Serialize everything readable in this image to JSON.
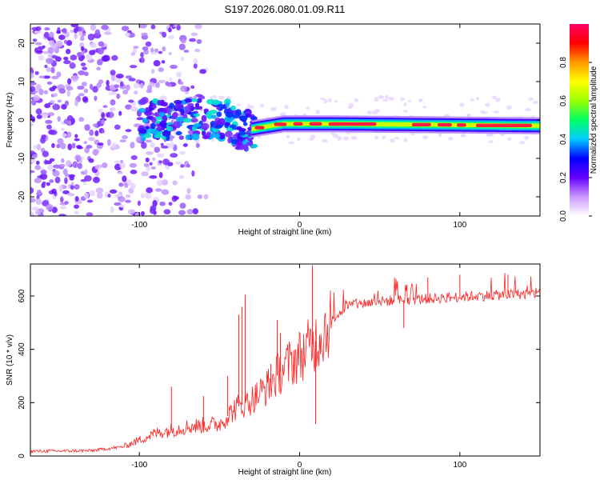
{
  "title": "S197.2026.080.01.09.R11",
  "chart_data": [
    {
      "type": "heatmap",
      "xlabel": "Height of straight line (km)",
      "ylabel": "Frequency (Hz)",
      "xlim": [
        -168,
        150
      ],
      "ylim": [
        -25,
        25
      ],
      "xticks": [
        -100,
        0,
        100
      ],
      "yticks": [
        -20,
        -10,
        0,
        10,
        20
      ],
      "colorbar": {
        "label": "Normalized spectral amplitude",
        "range": [
          0,
          1
        ],
        "ticks": [
          0.0,
          0.2,
          0.4,
          0.6,
          0.8
        ],
        "colors": [
          "#ffffff",
          "#cc99ff",
          "#6600ff",
          "#0000ff",
          "#00ccff",
          "#00ff66",
          "#99ff00",
          "#ffff00",
          "#ff9900",
          "#ff0000",
          "#ff0066"
        ]
      },
      "ridge": [
        {
          "x": -100,
          "freq": 0.0
        },
        {
          "x": -60,
          "freq": 0.5
        },
        {
          "x": -45,
          "freq": 0.0
        },
        {
          "x": -38,
          "freq": -3.0
        },
        {
          "x": -25,
          "freq": -2.0
        },
        {
          "x": -10,
          "freq": -1.0
        },
        {
          "x": 0,
          "freq": -1.0
        },
        {
          "x": 20,
          "freq": -1.0
        },
        {
          "x": 150,
          "freq": -1.5
        }
      ]
    },
    {
      "type": "line",
      "xlabel": "Height of straight line (km)",
      "ylabel": "SNR (10 * v/v)",
      "xlim": [
        -168,
        150
      ],
      "ylim": [
        0,
        720
      ],
      "xticks": [
        -100,
        0,
        100
      ],
      "yticks": [
        0,
        200,
        400,
        600
      ],
      "color": "#ff2222",
      "envelope": [
        {
          "x": -168,
          "snr": 18
        },
        {
          "x": -130,
          "snr": 20
        },
        {
          "x": -110,
          "snr": 35
        },
        {
          "x": -90,
          "snr": 85
        },
        {
          "x": -70,
          "snr": 110
        },
        {
          "x": -50,
          "snr": 120
        },
        {
          "x": -40,
          "snr": 180
        },
        {
          "x": -30,
          "snr": 210
        },
        {
          "x": -20,
          "snr": 260
        },
        {
          "x": -10,
          "snr": 330
        },
        {
          "x": 0,
          "snr": 375
        },
        {
          "x": 10,
          "snr": 430
        },
        {
          "x": 20,
          "snr": 510
        },
        {
          "x": 30,
          "snr": 565
        },
        {
          "x": 50,
          "snr": 580
        },
        {
          "x": 80,
          "snr": 590
        },
        {
          "x": 110,
          "snr": 600
        },
        {
          "x": 150,
          "snr": 610
        }
      ],
      "spikes": [
        {
          "x": -100,
          "snr": 60
        },
        {
          "x": -80,
          "snr": 260
        },
        {
          "x": -60,
          "snr": 225
        },
        {
          "x": -45,
          "snr": 300
        },
        {
          "x": -38,
          "snr": 530
        },
        {
          "x": -36,
          "snr": 560
        },
        {
          "x": -34,
          "snr": 605
        },
        {
          "x": -18,
          "snr": 345
        },
        {
          "x": -14,
          "snr": 510
        },
        {
          "x": -12,
          "snr": 460
        },
        {
          "x": 8,
          "snr": 715
        },
        {
          "x": 10,
          "snr": 120
        },
        {
          "x": 65,
          "snr": 480
        },
        {
          "x": 80,
          "snr": 670
        },
        {
          "x": 100,
          "snr": 680
        },
        {
          "x": 130,
          "snr": 680
        }
      ]
    }
  ]
}
